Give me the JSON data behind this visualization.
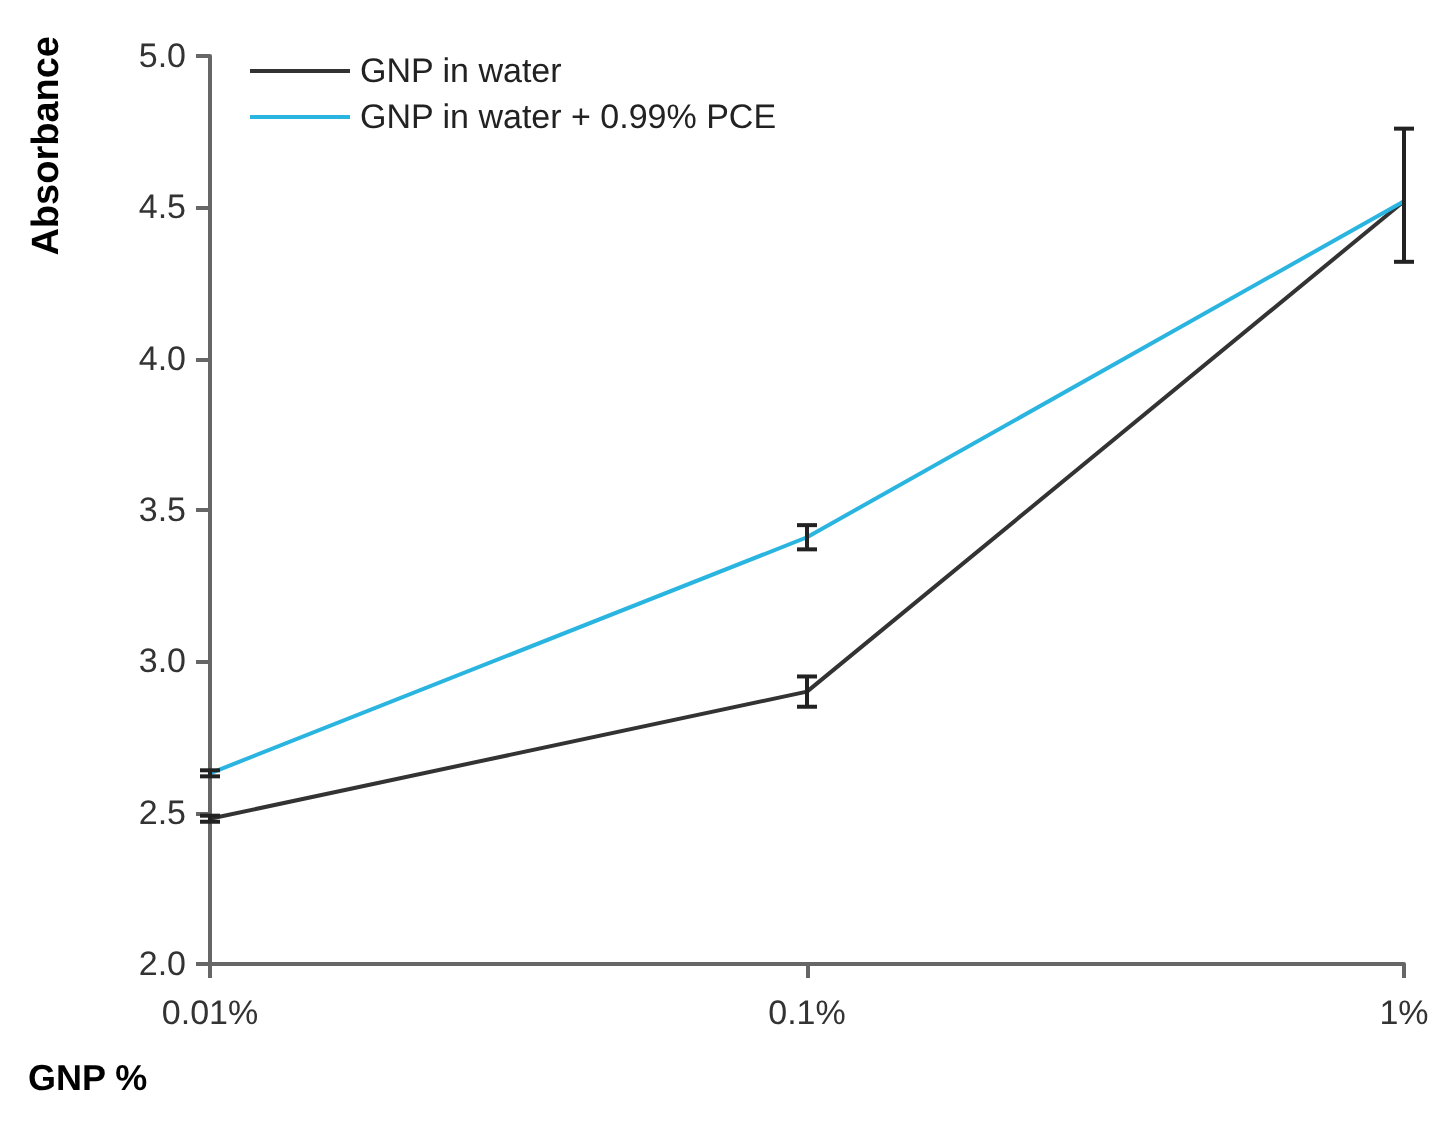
{
  "chart_data": {
    "type": "line",
    "xlabel": "GNP %",
    "ylabel": "Absorbance",
    "categories": [
      "0.01%",
      "0.1%",
      "1%"
    ],
    "series": [
      {
        "name": "GNP in water",
        "color": "#333333",
        "values": [
          2.48,
          2.9,
          4.52
        ],
        "errors": [
          0.01,
          0.05,
          [
            4.32,
            4.76
          ]
        ]
      },
      {
        "name": "GNP in water + 0.99% PCE",
        "color": "#29b5e0",
        "values": [
          2.63,
          3.41,
          4.52
        ],
        "errors": [
          0.01,
          0.04,
          null
        ]
      }
    ],
    "ylim": [
      2.0,
      5.0
    ],
    "yticks": [
      {
        "value": 2,
        "label": "2.0"
      },
      2.5,
      {
        "value": 3,
        "label": "3.0"
      },
      3.5,
      {
        "value": 4,
        "label": "4.0"
      },
      4.5,
      {
        "value": 5,
        "label": "5.0"
      }
    ],
    "grid": false,
    "legend": "top left",
    "marker": "none"
  }
}
